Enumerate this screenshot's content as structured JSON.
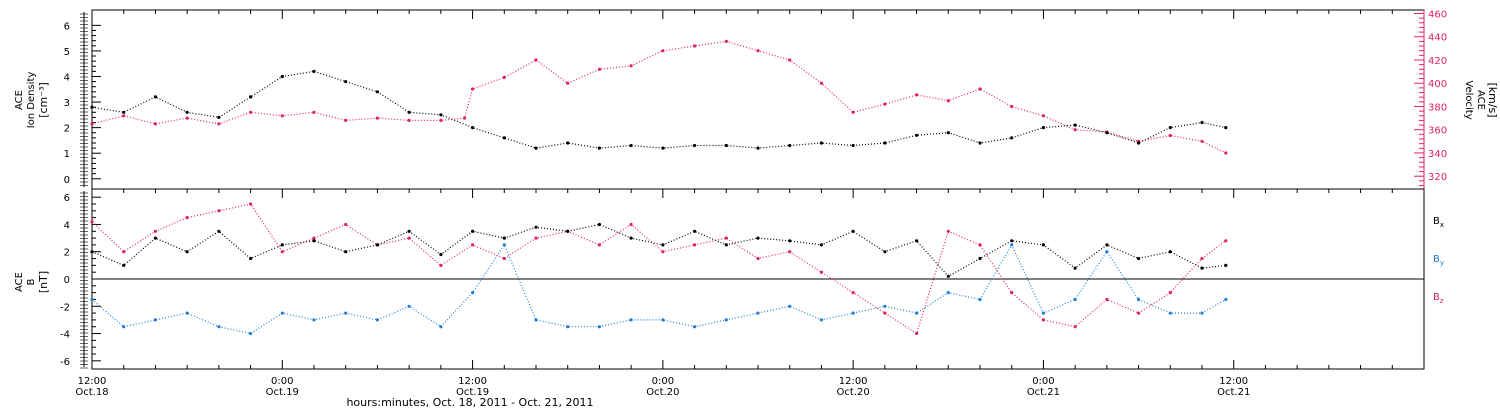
{
  "colors": {
    "black": "#000000",
    "pink": "#e0245e",
    "blue": "#1f7fd6"
  },
  "xaxis": {
    "range": [
      0,
      84
    ],
    "label": "hours:minutes, Oct. 18, 2011 - Oct. 21, 2011",
    "ticks": [
      {
        "h": 0,
        "time": "12:00",
        "date": "Oct.18"
      },
      {
        "h": 12,
        "time": "0:00",
        "date": "Oct.19"
      },
      {
        "h": 24,
        "time": "12:00",
        "date": "Oct.19"
      },
      {
        "h": 36,
        "time": "0:00",
        "date": "Oct.20"
      },
      {
        "h": 48,
        "time": "12:00",
        "date": "Oct.20"
      },
      {
        "h": 60,
        "time": "0:00",
        "date": "Oct.21"
      },
      {
        "h": 72,
        "time": "12:00",
        "date": "Oct.21"
      }
    ]
  },
  "top_panel": {
    "left_ylabel": [
      "ACE",
      "Ion Density"
    ],
    "left_unit": "[cm⁻³]",
    "left_ylim": [
      -0.4,
      6.6
    ],
    "left_ticks": [
      "0",
      "1",
      "2",
      "3",
      "4",
      "5",
      "6"
    ],
    "right_ylabel": [
      "ACE",
      "Velocity"
    ],
    "right_unit": "[km/s]",
    "right_ylim": [
      309,
      463
    ],
    "right_ticks": [
      "320",
      "340",
      "360",
      "380",
      "400",
      "420",
      "440",
      "460"
    ]
  },
  "bottom_panel": {
    "ylabel": [
      "ACE",
      "B"
    ],
    "unit": "[nT]",
    "ylim": [
      -6.6,
      6.6
    ],
    "ticks": [
      "-6",
      "-4",
      "-2",
      "0",
      "2",
      "4",
      "6"
    ],
    "legend": [
      {
        "name": "B",
        "sub": "x",
        "color": "#000000"
      },
      {
        "name": "B",
        "sub": "y",
        "color": "#1f7fd6"
      },
      {
        "name": "B",
        "sub": "z",
        "color": "#e0245e"
      }
    ]
  },
  "chart_data": [
    {
      "type": "scatter",
      "title": "",
      "xlabel": "hours:minutes, Oct. 18, 2011 - Oct. 21, 2011",
      "ylabel": "ACE Ion Density [cm⁻³]",
      "ylim": [
        -0.4,
        6.6
      ],
      "y2label": "ACE Velocity [km/s]",
      "y2lim": [
        309,
        463
      ],
      "x_unit": "hours since 2011-10-18 12:00",
      "series": [
        {
          "name": "Ion Density",
          "axis": "left",
          "color": "#000000",
          "x": [
            0,
            2,
            4,
            6,
            8,
            10,
            12,
            14,
            16,
            18,
            20,
            22,
            24,
            26,
            28,
            30,
            32,
            34,
            36,
            38,
            40,
            42,
            44,
            46,
            48,
            50,
            52,
            54,
            56,
            58,
            60,
            62,
            64,
            66,
            68,
            70,
            71.5
          ],
          "y": [
            2.8,
            2.6,
            3.2,
            2.6,
            2.4,
            3.2,
            4.0,
            4.2,
            3.8,
            3.4,
            2.6,
            2.5,
            2.0,
            1.6,
            1.2,
            1.4,
            1.2,
            1.3,
            1.2,
            1.3,
            1.3,
            1.2,
            1.3,
            1.4,
            1.3,
            1.4,
            1.7,
            1.8,
            1.4,
            1.6,
            2.0,
            2.1,
            1.8,
            1.4,
            2.0,
            2.2,
            2.0
          ]
        },
        {
          "name": "Velocity",
          "axis": "right",
          "color": "#e0245e",
          "x": [
            0,
            2,
            4,
            6,
            8,
            10,
            12,
            14,
            16,
            18,
            20,
            22,
            23.5,
            24,
            26,
            28,
            30,
            32,
            34,
            36,
            38,
            40,
            42,
            44,
            46,
            48,
            50,
            52,
            54,
            56,
            58,
            60,
            62,
            64,
            66,
            68,
            70,
            71.5
          ],
          "y": [
            365,
            372,
            365,
            370,
            365,
            375,
            372,
            375,
            368,
            370,
            368,
            368,
            370,
            395,
            405,
            420,
            400,
            412,
            415,
            428,
            432,
            436,
            428,
            420,
            400,
            375,
            382,
            390,
            385,
            395,
            380,
            372,
            360,
            358,
            350,
            355,
            350,
            340
          ]
        }
      ]
    },
    {
      "type": "scatter",
      "title": "",
      "xlabel": "hours:minutes, Oct. 18, 2011 - Oct. 21, 2011",
      "ylabel": "ACE B [nT]",
      "ylim": [
        -6.6,
        6.6
      ],
      "x_unit": "hours since 2011-10-18 12:00",
      "series": [
        {
          "name": "Bx",
          "color": "#000000",
          "x": [
            0,
            2,
            4,
            6,
            8,
            10,
            12,
            14,
            16,
            18,
            20,
            22,
            24,
            26,
            28,
            30,
            32,
            34,
            36,
            38,
            40,
            42,
            44,
            46,
            48,
            50,
            52,
            54,
            56,
            58,
            60,
            62,
            64,
            66,
            68,
            70,
            71.5
          ],
          "y": [
            2.0,
            1.0,
            3.0,
            2.0,
            3.5,
            1.5,
            2.5,
            2.8,
            2.0,
            2.5,
            3.5,
            1.8,
            3.5,
            3.0,
            3.8,
            3.5,
            4.0,
            3.0,
            2.5,
            3.5,
            2.5,
            3.0,
            2.8,
            2.5,
            3.5,
            2.0,
            2.8,
            0.2,
            1.5,
            2.8,
            2.5,
            0.8,
            2.5,
            1.5,
            2.0,
            0.8,
            1.0
          ]
        },
        {
          "name": "By",
          "color": "#1f7fd6",
          "x": [
            0,
            2,
            4,
            6,
            8,
            10,
            12,
            14,
            16,
            18,
            20,
            22,
            24,
            26,
            28,
            30,
            32,
            34,
            36,
            38,
            40,
            42,
            44,
            46,
            48,
            50,
            52,
            54,
            56,
            58,
            60,
            62,
            64,
            66,
            68,
            70,
            71.5
          ],
          "y": [
            -1.5,
            -3.5,
            -3.0,
            -2.5,
            -3.5,
            -4.0,
            -2.5,
            -3.0,
            -2.5,
            -3.0,
            -2.0,
            -3.5,
            -1.0,
            2.5,
            -3.0,
            -3.5,
            -3.5,
            -3.0,
            -3.0,
            -3.5,
            -3.0,
            -2.5,
            -2.0,
            -3.0,
            -2.5,
            -2.0,
            -2.5,
            -1.0,
            -1.5,
            2.5,
            -2.5,
            -1.5,
            2.0,
            -1.5,
            -2.5,
            -2.5,
            -1.5
          ]
        },
        {
          "name": "Bz",
          "color": "#e0245e",
          "x": [
            0,
            2,
            4,
            6,
            8,
            10,
            12,
            14,
            16,
            18,
            20,
            22,
            24,
            26,
            28,
            30,
            32,
            34,
            36,
            38,
            40,
            42,
            44,
            46,
            48,
            50,
            52,
            54,
            56,
            58,
            60,
            62,
            64,
            66,
            68,
            70,
            71.5
          ],
          "y": [
            4.2,
            2.0,
            3.5,
            4.5,
            5.0,
            5.5,
            2.0,
            3.0,
            4.0,
            2.5,
            3.0,
            1.0,
            2.5,
            1.5,
            3.0,
            3.5,
            2.5,
            4.0,
            2.0,
            2.5,
            3.0,
            1.5,
            2.0,
            0.5,
            -1.0,
            -2.5,
            -4.0,
            3.5,
            2.5,
            -1.0,
            -3.0,
            -3.5,
            -1.5,
            -2.5,
            -1.0,
            1.5,
            2.8
          ]
        }
      ]
    }
  ]
}
